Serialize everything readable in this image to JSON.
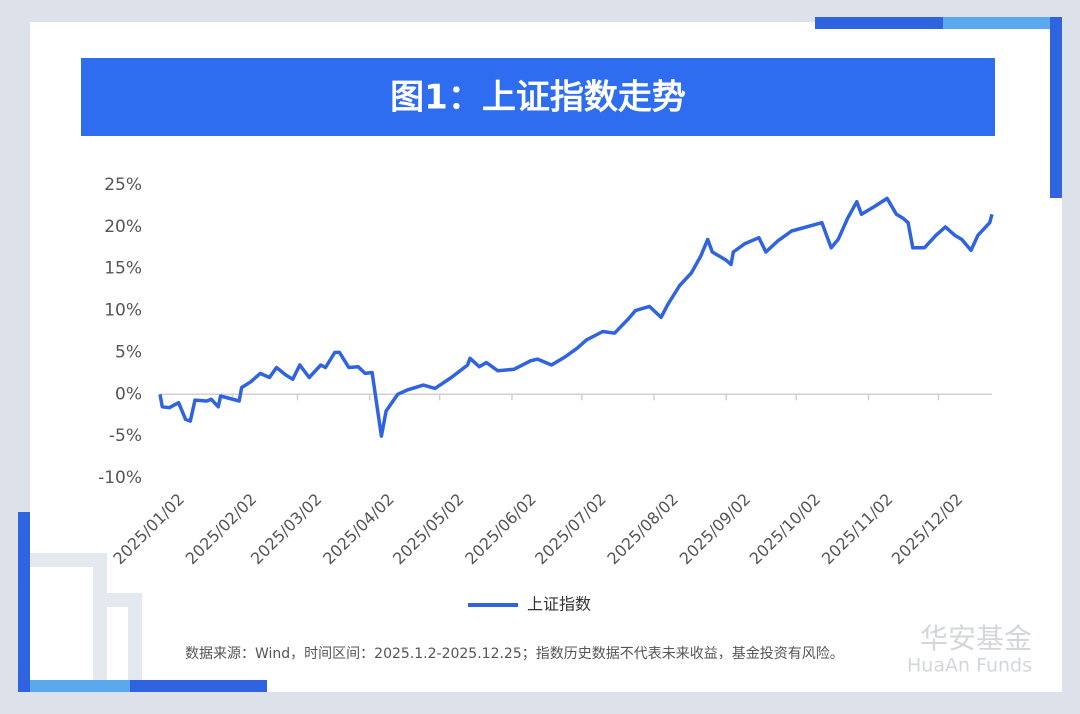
{
  "chart_data": {
    "type": "line",
    "title": "图1：上证指数走势",
    "x": [
      "2025/01/02",
      "2025/01/03",
      "2025/01/06",
      "2025/01/10",
      "2025/01/13",
      "2025/01/15",
      "2025/01/17",
      "2025/01/22",
      "2025/01/24",
      "2025/01/27",
      "2025/01/28",
      "2025/02/05",
      "2025/02/06",
      "2025/02/10",
      "2025/02/14",
      "2025/02/18",
      "2025/02/21",
      "2025/02/25",
      "2025/02/28",
      "2025/03/03",
      "2025/03/07",
      "2025/03/12",
      "2025/03/14",
      "2025/03/18",
      "2025/03/20",
      "2025/03/24",
      "2025/03/28",
      "2025/03/31",
      "2025/04/03",
      "2025/04/07",
      "2025/04/09",
      "2025/04/14",
      "2025/04/18",
      "2025/04/25",
      "2025/04/30",
      "2025/05/07",
      "2025/05/14",
      "2025/05/15",
      "2025/05/19",
      "2025/05/22",
      "2025/05/27",
      "2025/06/03",
      "2025/06/10",
      "2025/06/13",
      "2025/06/19",
      "2025/06/25",
      "2025/06/30",
      "2025/07/04",
      "2025/07/11",
      "2025/07/16",
      "2025/07/22",
      "2025/07/25",
      "2025/07/31",
      "2025/08/05",
      "2025/08/08",
      "2025/08/13",
      "2025/08/18",
      "2025/08/22",
      "2025/08/25",
      "2025/08/27",
      "2025/09/02",
      "2025/09/04",
      "2025/09/05",
      "2025/09/10",
      "2025/09/16",
      "2025/09/19",
      "2025/09/24",
      "2025/09/30",
      "2025/10/13",
      "2025/10/15",
      "2025/10/17",
      "2025/10/20",
      "2025/10/24",
      "2025/10/28",
      "2025/10/30",
      "2025/11/05",
      "2025/11/10",
      "2025/11/14",
      "2025/11/17",
      "2025/11/19",
      "2025/11/21",
      "2025/11/26",
      "2025/12/01",
      "2025/12/05",
      "2025/12/09",
      "2025/12/12",
      "2025/12/16",
      "2025/12/19",
      "2025/12/24",
      "2025/12/25"
    ],
    "series": [
      {
        "name": "上证指数",
        "color": "#2f63e0",
        "values": [
          0,
          -1.5,
          -1.6,
          -1,
          -3,
          -3.2,
          -0.7,
          -0.8,
          -0.6,
          -1.5,
          -0.2,
          -0.8,
          0.8,
          1.5,
          2.5,
          2,
          3.2,
          2.3,
          1.8,
          3.5,
          2,
          3.5,
          3.2,
          5,
          5,
          3.2,
          3.3,
          2.5,
          2.6,
          -5,
          -2,
          0,
          0.5,
          1.1,
          0.7,
          2,
          3.5,
          4.3,
          3.3,
          3.8,
          2.8,
          3,
          4,
          4.2,
          3.5,
          4.5,
          5.5,
          6.5,
          7.5,
          7.3,
          9,
          10,
          10.5,
          9.2,
          10.8,
          13,
          14.5,
          16.5,
          18.5,
          17,
          16,
          15.5,
          17,
          18,
          18.7,
          17,
          18.3,
          19.5,
          20.5,
          19,
          17.5,
          18.5,
          21,
          23,
          21.5,
          22.5,
          23.4,
          21.5,
          21,
          20.5,
          17.5,
          17.5,
          19,
          20,
          19,
          18.5,
          17.2,
          19,
          20.5,
          21.5
        ]
      }
    ],
    "xlim": [
      "2025/01/02",
      "2025/12/25"
    ],
    "xticks": [
      "2025/01/02",
      "2025/02/02",
      "2025/03/02",
      "2025/04/02",
      "2025/05/02",
      "2025/06/02",
      "2025/07/02",
      "2025/08/02",
      "2025/09/02",
      "2025/10/02",
      "2025/11/02",
      "2025/12/02"
    ],
    "ylim": [
      -10,
      25
    ],
    "yticks": [
      {
        "value": -10,
        "label": "-10%"
      },
      {
        "value": -5,
        "label": "-5%"
      },
      {
        "value": 0,
        "label": "0%"
      },
      {
        "value": 5,
        "label": "5%"
      },
      {
        "value": 10,
        "label": "10%"
      },
      {
        "value": 15,
        "label": "15%"
      },
      {
        "value": 20,
        "label": "20%"
      },
      {
        "value": 25,
        "label": "25%"
      }
    ],
    "grid": false,
    "legend": "bottom",
    "source": "数据来源：Wind，时间区间：2025.1.2-2025.12.25；指数历史数据不代表未来收益，基金投资有风险。",
    "watermark": [
      "华安基金",
      "HuaAn Funds"
    ]
  }
}
